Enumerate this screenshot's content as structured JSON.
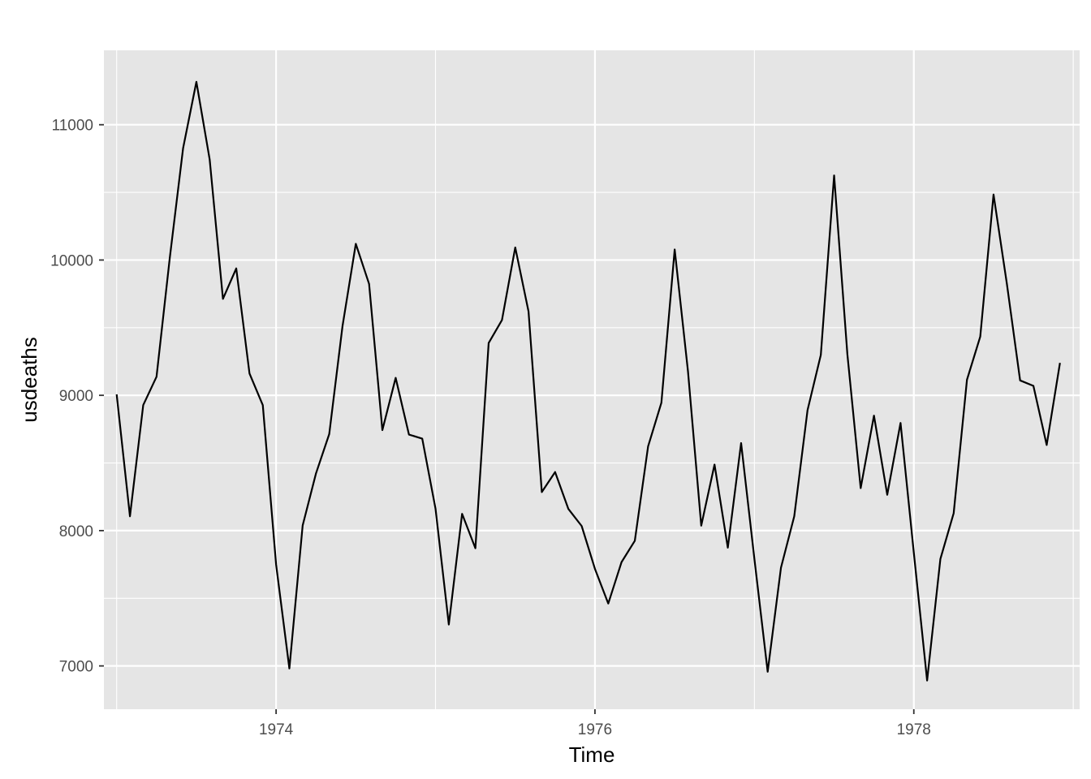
{
  "chart_data": {
    "type": "line",
    "title": "",
    "xlabel": "Time",
    "ylabel": "usdeaths",
    "xlim": [
      1972.92,
      1979.04
    ],
    "ylim": [
      6680,
      11550
    ],
    "x_major_ticks": [
      1974,
      1976,
      1978
    ],
    "x_minor_ticks": [
      1973,
      1975,
      1977,
      1979
    ],
    "y_major_ticks": [
      7000,
      8000,
      9000,
      10000,
      11000
    ],
    "y_minor_ticks": [
      7500,
      8500,
      9500,
      10500
    ],
    "x_tick_labels": [
      "1974",
      "1976",
      "1978"
    ],
    "y_tick_labels": [
      "7000",
      "8000",
      "9000",
      "10000",
      "11000"
    ],
    "grid": true,
    "legend": "none",
    "x_start": 1973,
    "x_step_label": "monthly",
    "series": [
      {
        "values": [
          9007,
          8106,
          8928,
          9137,
          10017,
          10826,
          11317,
          10744,
          9713,
          9938,
          9161,
          8927,
          7750,
          6981,
          8038,
          8422,
          8714,
          9512,
          10120,
          9823,
          8743,
          9129,
          8710,
          8680,
          8162,
          7306,
          8124,
          7870,
          9387,
          9556,
          10093,
          9620,
          8285,
          8433,
          8160,
          8034,
          7717,
          7461,
          7767,
          7925,
          8623,
          8945,
          10078,
          9179,
          8037,
          8488,
          7874,
          8647,
          7792,
          6957,
          7726,
          8106,
          8890,
          9299,
          10625,
          9302,
          8314,
          8850,
          8265,
          8796,
          7836,
          6892,
          7791,
          8129,
          9115,
          9434,
          10484,
          9827,
          9110,
          9070,
          8633,
          9240
        ]
      }
    ],
    "colors": {
      "panel": "#e5e5e5",
      "grid": "#ffffff",
      "line": "#000000",
      "tick_text": "#4d4d4d"
    }
  }
}
